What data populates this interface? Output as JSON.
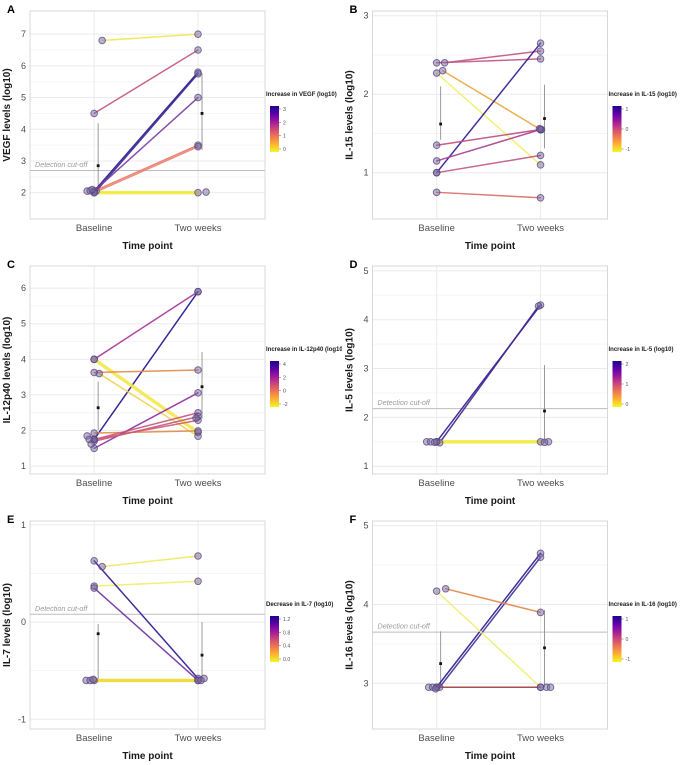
{
  "figure": {
    "background": "#ffffff",
    "x_axis_title": "Time point",
    "categories": [
      "Baseline",
      "Two weeks"
    ]
  },
  "palette": {
    "colorbar_gradient": [
      "#1b068b",
      "#5c01a6",
      "#9c179e",
      "#cc4778",
      "#ed7953",
      "#fdb32f",
      "#f0f921"
    ],
    "point_fill": "#7a6aa0",
    "point_stroke": "#55447f",
    "grid_major": "#ebebeb",
    "grid_minor": "#f5f5f5",
    "panel_border": "#d8d8d8",
    "cutoff_line": "#bdbdbd",
    "cutoff_text": "#9a9a9a",
    "errorbar_line": "#8f8f8f",
    "errorbar_mean": "#111111",
    "tick_text": "#4d4d4d",
    "axis_title_text": "#1a1a1a"
  },
  "chart_data": [
    {
      "panel": "A",
      "type": "line",
      "ylabel": "VEGF levels (log10)",
      "xlabel": "Time point",
      "categories": [
        "Baseline",
        "Two weeks"
      ],
      "yticks": [
        2,
        3,
        4,
        5,
        6,
        7
      ],
      "ylim": [
        1.17,
        7.73
      ],
      "legend": {
        "title": "Increase in VEGF (log10)",
        "ticks": [
          "3",
          "2",
          "1",
          "0"
        ]
      },
      "detection_cutoff": {
        "value": 2.7,
        "label": "Detection cut-off"
      },
      "series": [
        {
          "name": "pair-1",
          "values": [
            6.8,
            7.0
          ],
          "color": "#f0e54b",
          "thick": false,
          "dx": [
            8,
            0
          ]
        },
        {
          "name": "pair-2",
          "values": [
            4.5,
            6.5
          ],
          "color": "#c2547f",
          "thick": false,
          "dx": [
            0,
            0
          ]
        },
        {
          "name": "pair-3",
          "values": [
            2.05,
            5.8
          ],
          "color": "#2a1a8d",
          "thick": false,
          "dx": [
            0,
            0
          ]
        },
        {
          "name": "pair-4",
          "values": [
            2.05,
            5.75
          ],
          "color": "#3a2494",
          "thick": false,
          "dx": [
            2,
            0
          ]
        },
        {
          "name": "pair-5",
          "values": [
            2.05,
            5.0
          ],
          "color": "#7a3c9d",
          "thick": false,
          "dx": [
            0,
            0
          ]
        },
        {
          "name": "pair-6",
          "values": [
            2.05,
            3.5
          ],
          "color": "#e8796a",
          "thick": false,
          "dx": [
            0,
            0
          ]
        },
        {
          "name": "pair-7",
          "values": [
            2.0,
            3.45
          ],
          "color": "#ea8270",
          "thick": false,
          "dx": [
            0,
            0
          ]
        },
        {
          "name": "pair-8",
          "values": [
            2.0,
            2.0
          ],
          "color": "#f2ea3a",
          "thick": true,
          "dx": [
            0,
            0
          ]
        }
      ],
      "error_bars": [
        {
          "category": 0,
          "low": 1.98,
          "high": 4.19,
          "mean": 2.85
        },
        {
          "category": 1,
          "low": 3.35,
          "high": 5.77,
          "mean": 4.5
        }
      ],
      "extra_points": [
        {
          "category": 0,
          "value": 2.05,
          "dx": -7
        },
        {
          "category": 0,
          "value": 2.06,
          "dx": -4
        },
        {
          "category": 0,
          "value": 2.1,
          "dx": -2
        },
        {
          "category": 1,
          "value": 2.02,
          "dx": 8
        }
      ]
    },
    {
      "panel": "B",
      "type": "line",
      "ylabel": "IL-15 levels (log10)",
      "xlabel": "Time point",
      "categories": [
        "Baseline",
        "Two weeks"
      ],
      "yticks": [
        1,
        2,
        3
      ],
      "ylim": [
        0.41,
        3.06
      ],
      "legend": {
        "title": "Increase in IL-15 (log10)",
        "ticks": [
          "1",
          "0",
          "-1"
        ]
      },
      "detection_cutoff": null,
      "series": [
        {
          "name": "pair-1",
          "values": [
            2.4,
            2.55
          ],
          "color": "#c2547f",
          "thick": false,
          "dx": [
            8,
            0
          ]
        },
        {
          "name": "pair-2",
          "values": [
            2.4,
            2.45
          ],
          "color": "#c2547f",
          "thick": false,
          "dx": [
            0,
            0
          ]
        },
        {
          "name": "pair-3",
          "values": [
            2.3,
            1.55
          ],
          "color": "#e9a63e",
          "thick": false,
          "dx": [
            6,
            0
          ]
        },
        {
          "name": "pair-4",
          "values": [
            2.27,
            1.1
          ],
          "color": "#f2ee67",
          "thick": false,
          "dx": [
            0,
            0
          ]
        },
        {
          "name": "pair-5",
          "values": [
            1.0,
            2.65
          ],
          "color": "#2c1a8e",
          "thick": false,
          "dx": [
            0,
            0
          ]
        },
        {
          "name": "pair-6",
          "values": [
            1.35,
            1.55
          ],
          "color": "#bd4d82",
          "thick": false,
          "dx": [
            0,
            0
          ]
        },
        {
          "name": "pair-7",
          "values": [
            1.15,
            1.55
          ],
          "color": "#a63d90",
          "thick": false,
          "dx": [
            0,
            0
          ]
        },
        {
          "name": "pair-8",
          "values": [
            1.0,
            1.22
          ],
          "color": "#c2547f",
          "thick": false,
          "dx": [
            0,
            0
          ]
        },
        {
          "name": "pair-9",
          "values": [
            0.75,
            0.68
          ],
          "color": "#d96a67",
          "thick": false,
          "dx": [
            0,
            0
          ]
        }
      ],
      "error_bars": [
        {
          "category": 0,
          "low": 1.42,
          "high": 2.1,
          "mean": 1.62
        },
        {
          "category": 1,
          "low": 1.31,
          "high": 2.12,
          "mean": 1.69
        }
      ],
      "extra_points": [
        {
          "category": 1,
          "value": 1.55,
          "dx": 1
        },
        {
          "category": 1,
          "value": 1.56,
          "dx": -1
        }
      ]
    },
    {
      "panel": "C",
      "type": "line",
      "ylabel": "IL-12p40 levels (log10)",
      "xlabel": "Time point",
      "categories": [
        "Baseline",
        "Two weeks"
      ],
      "yticks": [
        1,
        2,
        3,
        4,
        5,
        6
      ],
      "ylim": [
        0.78,
        6.62
      ],
      "legend": {
        "title": "Increase in IL-12p40 (log10)",
        "ticks": [
          "4",
          "2",
          "0",
          "-2"
        ]
      },
      "detection_cutoff": null,
      "series": [
        {
          "name": "pair-1",
          "values": [
            4.0,
            5.9
          ],
          "color": "#a83297",
          "thick": false,
          "dx": [
            0,
            0
          ]
        },
        {
          "name": "pair-2",
          "values": [
            1.75,
            5.9
          ],
          "color": "#1f128a",
          "thick": false,
          "dx": [
            0,
            0
          ]
        },
        {
          "name": "pair-3",
          "values": [
            4.0,
            1.95
          ],
          "color": "#f2e84e",
          "thick": true,
          "dx": [
            0,
            0
          ]
        },
        {
          "name": "pair-4",
          "values": [
            3.6,
            1.84
          ],
          "color": "#efd24a",
          "thick": false,
          "dx": [
            5,
            0
          ]
        },
        {
          "name": "pair-5",
          "values": [
            3.63,
            3.7
          ],
          "color": "#e08a4a",
          "thick": false,
          "dx": [
            0,
            0
          ]
        },
        {
          "name": "pair-6",
          "values": [
            1.93,
            1.99
          ],
          "color": "#e08a4a",
          "thick": false,
          "dx": [
            0,
            0
          ]
        },
        {
          "name": "pair-7",
          "values": [
            1.5,
            3.06
          ],
          "color": "#8f2f9f",
          "thick": false,
          "dx": [
            0,
            0
          ]
        },
        {
          "name": "pair-8",
          "values": [
            1.75,
            2.5
          ],
          "color": "#c2547f",
          "thick": false,
          "dx": [
            0,
            0
          ]
        },
        {
          "name": "pair-9",
          "values": [
            1.7,
            2.39
          ],
          "color": "#c2547f",
          "thick": false,
          "dx": [
            0,
            0
          ]
        },
        {
          "name": "pair-10",
          "values": [
            1.75,
            2.29
          ],
          "color": "#cf5a6f",
          "thick": false,
          "dx": [
            0,
            0
          ]
        }
      ],
      "error_bars": [
        {
          "category": 0,
          "low": 2.01,
          "high": 3.37,
          "mean": 2.64
        },
        {
          "category": 1,
          "low": 2.34,
          "high": 4.21,
          "mean": 3.23
        }
      ],
      "extra_points": [
        {
          "category": 0,
          "value": 1.85,
          "dx": -7
        },
        {
          "category": 0,
          "value": 1.75,
          "dx": -5
        },
        {
          "category": 0,
          "value": 1.62,
          "dx": -3
        },
        {
          "category": 1,
          "value": 2.35,
          "dx": -2
        }
      ]
    },
    {
      "panel": "D",
      "type": "line",
      "ylabel": "IL-5 levels (log10)",
      "xlabel": "Time point",
      "categories": [
        "Baseline",
        "Two weeks"
      ],
      "yticks": [
        1,
        2,
        3,
        4,
        5
      ],
      "ylim": [
        0.84,
        5.1
      ],
      "legend": {
        "title": "Increase in IL-5 (log10)",
        "ticks": [
          "2",
          "1",
          "0"
        ]
      },
      "detection_cutoff": {
        "value": 2.18,
        "label": "Detection cut-off"
      },
      "series": [
        {
          "name": "pair-1",
          "values": [
            1.5,
            4.3
          ],
          "color": "#2c1a8e",
          "thick": false,
          "dx": [
            0,
            0
          ]
        },
        {
          "name": "pair-2",
          "values": [
            1.48,
            4.28
          ],
          "color": "#45258f",
          "thick": false,
          "dx": [
            3,
            -2
          ]
        },
        {
          "name": "pair-3",
          "values": [
            1.5,
            1.5
          ],
          "color": "#f2ea3a",
          "thick": true,
          "dx": [
            0,
            0
          ]
        }
      ],
      "error_bars": [
        {
          "category": 1,
          "low": 1.47,
          "high": 3.07,
          "mean": 2.13
        }
      ],
      "extra_points": [
        {
          "category": 0,
          "value": 1.5,
          "dx": -10
        },
        {
          "category": 0,
          "value": 1.5,
          "dx": -6
        },
        {
          "category": 0,
          "value": 1.49,
          "dx": -2
        },
        {
          "category": 1,
          "value": 1.5,
          "dx": 8
        },
        {
          "category": 1,
          "value": 1.49,
          "dx": 4
        }
      ]
    },
    {
      "panel": "E",
      "type": "line",
      "ylabel": "IL-7 levels (log10)",
      "xlabel": "Time point",
      "categories": [
        "Baseline",
        "Two weeks"
      ],
      "yticks": [
        -1,
        0,
        1
      ],
      "ylim": [
        -1.1,
        1.04
      ],
      "legend": {
        "title": "Decrease in IL-7 (log10)",
        "ticks": [
          "1.2",
          "0.8",
          "0.4",
          "0.0"
        ]
      },
      "detection_cutoff": {
        "value": 0.08,
        "label": "Detection cut-off"
      },
      "series": [
        {
          "name": "pair-1",
          "values": [
            0.57,
            0.68
          ],
          "color": "#f2e861",
          "thick": false,
          "dx": [
            8,
            0
          ]
        },
        {
          "name": "pair-2",
          "values": [
            0.37,
            0.42
          ],
          "color": "#f2ee67",
          "thick": false,
          "dx": [
            0,
            0
          ]
        },
        {
          "name": "pair-3",
          "values": [
            0.63,
            -0.58
          ],
          "color": "#2e1590",
          "thick": false,
          "dx": [
            0,
            0
          ]
        },
        {
          "name": "pair-4",
          "values": [
            0.35,
            -0.6
          ],
          "color": "#6f309c",
          "thick": false,
          "dx": [
            0,
            0
          ]
        },
        {
          "name": "pair-5",
          "values": [
            -0.6,
            -0.6
          ],
          "color": "#f0d82e",
          "thick": true,
          "dx": [
            0,
            0
          ]
        }
      ],
      "error_bars": [
        {
          "category": 0,
          "low": -0.62,
          "high": -0.02,
          "mean": -0.12
        },
        {
          "category": 1,
          "low": -0.62,
          "high": 0.0,
          "mean": -0.34
        }
      ],
      "extra_points": [
        {
          "category": 0,
          "value": -0.6,
          "dx": -8
        },
        {
          "category": 0,
          "value": -0.6,
          "dx": -4
        },
        {
          "category": 0,
          "value": -0.59,
          "dx": -1
        },
        {
          "category": 1,
          "value": -0.58,
          "dx": 6
        },
        {
          "category": 1,
          "value": -0.6,
          "dx": 3
        }
      ]
    },
    {
      "panel": "F",
      "type": "line",
      "ylabel": "IL-16 levels (log10)",
      "xlabel": "Time point",
      "categories": [
        "Baseline",
        "Two weeks"
      ],
      "yticks": [
        3,
        4,
        5
      ],
      "ylim": [
        2.42,
        5.06
      ],
      "legend": {
        "title": "Increase in IL-16 (log10)",
        "ticks": [
          "1",
          "0",
          "-1"
        ]
      },
      "detection_cutoff": {
        "value": 3.65,
        "label": "Detection cut-off"
      },
      "series": [
        {
          "name": "pair-1",
          "values": [
            2.95,
            4.65
          ],
          "color": "#2a1a8d",
          "thick": false,
          "dx": [
            0,
            0
          ]
        },
        {
          "name": "pair-2",
          "values": [
            2.95,
            4.6
          ],
          "color": "#423097",
          "thick": false,
          "dx": [
            3,
            0
          ]
        },
        {
          "name": "pair-3",
          "values": [
            4.2,
            3.9
          ],
          "color": "#e08a4a",
          "thick": false,
          "dx": [
            9,
            0
          ]
        },
        {
          "name": "pair-4",
          "values": [
            4.17,
            2.95
          ],
          "color": "#f0ee6e",
          "thick": false,
          "dx": [
            0,
            0
          ]
        },
        {
          "name": "pair-5",
          "values": [
            2.95,
            2.95
          ],
          "color": "#9e3a3c",
          "thick": false,
          "dx": [
            0,
            0
          ]
        }
      ],
      "error_bars": [
        {
          "category": 0,
          "low": 2.95,
          "high": 3.66,
          "mean": 3.25
        },
        {
          "category": 1,
          "low": 2.95,
          "high": 3.93,
          "mean": 3.45
        }
      ],
      "extra_points": [
        {
          "category": 0,
          "value": 2.95,
          "dx": -8
        },
        {
          "category": 0,
          "value": 2.95,
          "dx": -4
        },
        {
          "category": 0,
          "value": 2.93,
          "dx": -1
        },
        {
          "category": 1,
          "value": 2.95,
          "dx": 6
        },
        {
          "category": 1,
          "value": 2.95,
          "dx": 10
        }
      ]
    }
  ]
}
